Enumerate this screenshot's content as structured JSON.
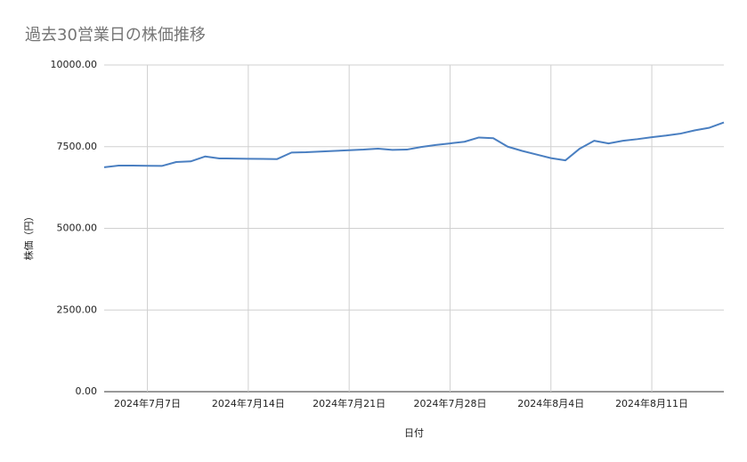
{
  "chart_data": {
    "type": "line",
    "title": "過去30営業日の株価推移",
    "xlabel": "日付",
    "ylabel": "株価（円）",
    "x": [
      "2024-07-04",
      "2024-07-05",
      "2024-07-06",
      "2024-07-07",
      "2024-07-08",
      "2024-07-09",
      "2024-07-10",
      "2024-07-11",
      "2024-07-12",
      "2024-07-13",
      "2024-07-14",
      "2024-07-15",
      "2024-07-16",
      "2024-07-17",
      "2024-07-18",
      "2024-07-19",
      "2024-07-20",
      "2024-07-21",
      "2024-07-22",
      "2024-07-23",
      "2024-07-24",
      "2024-07-25",
      "2024-07-26",
      "2024-07-27",
      "2024-07-28",
      "2024-07-29",
      "2024-07-30",
      "2024-07-31",
      "2024-08-01",
      "2024-08-02",
      "2024-08-03",
      "2024-08-04",
      "2024-08-05",
      "2024-08-06",
      "2024-08-07",
      "2024-08-08",
      "2024-08-09",
      "2024-08-10",
      "2024-08-11",
      "2024-08-12",
      "2024-08-13",
      "2024-08-14",
      "2024-08-15",
      "2024-08-16"
    ],
    "series": [
      {
        "name": "株価",
        "color": "#4a7fc1",
        "values": [
          6870,
          6920,
          6920,
          6915,
          6910,
          7030,
          7050,
          7200,
          7140,
          7135,
          7130,
          7125,
          7120,
          7320,
          7330,
          7350,
          7370,
          7390,
          7410,
          7440,
          7400,
          7410,
          7490,
          7550,
          7600,
          7650,
          7780,
          7760,
          7500,
          7370,
          7260,
          7150,
          7080,
          7440,
          7680,
          7600,
          7680,
          7730,
          7790,
          7840,
          7900,
          8000,
          8080,
          8240
        ]
      }
    ],
    "xlim": [
      "2024-07-04",
      "2024-08-16"
    ],
    "xticks": [
      {
        "value": "2024-07-07",
        "label": "2024年7月7日"
      },
      {
        "value": "2024-07-14",
        "label": "2024年7月14日"
      },
      {
        "value": "2024-07-21",
        "label": "2024年7月21日"
      },
      {
        "value": "2024-07-28",
        "label": "2024年7月28日"
      },
      {
        "value": "2024-08-04",
        "label": "2024年8月4日"
      },
      {
        "value": "2024-08-11",
        "label": "2024年8月11日"
      }
    ],
    "ylim": [
      0,
      10000
    ],
    "yticks": [
      {
        "value": 0,
        "label": "0.00"
      },
      {
        "value": 2500,
        "label": "2500.00"
      },
      {
        "value": 5000,
        "label": "5000.00"
      },
      {
        "value": 7500,
        "label": "7500.00"
      },
      {
        "value": 10000,
        "label": "10000.00"
      }
    ],
    "grid": true
  }
}
